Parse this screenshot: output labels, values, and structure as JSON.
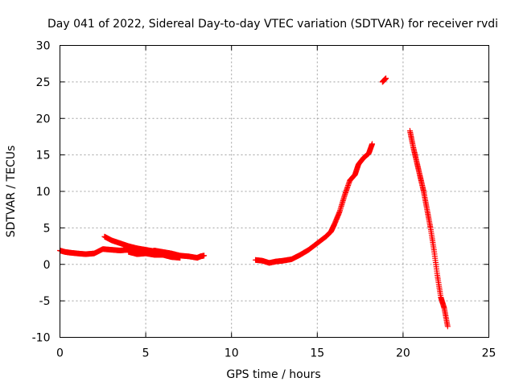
{
  "chart_data": {
    "type": "scatter",
    "title": "Day 041 of 2022, Sidereal Day-to-day VTEC variation (SDTVAR) for receiver rvdi",
    "xlabel": "GPS time / hours",
    "ylabel": "SDTVAR / TECUs",
    "xlim": [
      0,
      25
    ],
    "ylim": [
      -10,
      30
    ],
    "xticks": [
      0,
      5,
      10,
      15,
      20,
      25
    ],
    "yticks": [
      -10,
      -5,
      0,
      5,
      10,
      15,
      20,
      25,
      30
    ],
    "grid": true,
    "marker": "+",
    "series": [
      {
        "name": "SDTVAR",
        "color": "#ff0000",
        "segments": [
          [
            [
              0.0,
              1.9
            ],
            [
              0.3,
              1.7
            ],
            [
              0.6,
              1.6
            ],
            [
              1.0,
              1.5
            ],
            [
              1.5,
              1.4
            ],
            [
              2.0,
              1.5
            ],
            [
              2.5,
              2.1
            ],
            [
              3.0,
              2.0
            ],
            [
              3.5,
              1.9
            ],
            [
              4.0,
              2.0
            ],
            [
              4.5,
              1.9
            ],
            [
              5.0,
              1.6
            ],
            [
              5.5,
              1.9
            ],
            [
              6.0,
              1.7
            ],
            [
              6.5,
              1.5
            ],
            [
              7.0,
              1.2
            ],
            [
              7.5,
              1.1
            ],
            [
              8.0,
              0.9
            ],
            [
              8.2,
              1.1
            ],
            [
              8.4,
              1.2
            ]
          ],
          [
            [
              2.6,
              3.8
            ],
            [
              3.0,
              3.3
            ],
            [
              3.5,
              2.9
            ],
            [
              4.0,
              2.5
            ],
            [
              4.5,
              2.2
            ],
            [
              5.0,
              2.0
            ],
            [
              5.5,
              1.8
            ],
            [
              6.0,
              1.3
            ],
            [
              6.5,
              1.0
            ],
            [
              7.0,
              0.9
            ]
          ],
          [
            [
              4.0,
              1.7
            ],
            [
              4.5,
              1.4
            ],
            [
              5.0,
              1.5
            ],
            [
              5.5,
              1.3
            ],
            [
              6.0,
              1.3
            ],
            [
              6.5,
              1.4
            ]
          ],
          [
            [
              11.4,
              0.6
            ],
            [
              11.8,
              0.5
            ],
            [
              12.2,
              0.2
            ],
            [
              12.6,
              0.4
            ],
            [
              13.0,
              0.5
            ],
            [
              13.5,
              0.7
            ],
            [
              14.0,
              1.3
            ],
            [
              14.5,
              2.0
            ],
            [
              15.0,
              2.9
            ],
            [
              15.5,
              3.8
            ],
            [
              15.8,
              4.5
            ],
            [
              16.0,
              5.5
            ],
            [
              16.3,
              7.2
            ],
            [
              16.6,
              9.5
            ],
            [
              16.9,
              11.5
            ],
            [
              17.2,
              12.3
            ],
            [
              17.4,
              13.7
            ],
            [
              17.7,
              14.6
            ],
            [
              18.0,
              15.2
            ],
            [
              18.2,
              16.5
            ]
          ],
          [
            [
              18.8,
              25.0
            ],
            [
              19.0,
              25.5
            ]
          ],
          [
            [
              20.4,
              18.3
            ],
            [
              20.6,
              16.0
            ],
            [
              20.8,
              14.0
            ],
            [
              21.0,
              12.0
            ],
            [
              21.2,
              10.0
            ],
            [
              21.4,
              7.5
            ],
            [
              21.6,
              5.0
            ],
            [
              21.8,
              2.0
            ],
            [
              22.0,
              -1.5
            ],
            [
              22.2,
              -4.5
            ],
            [
              22.4,
              -6.0
            ],
            [
              22.6,
              -8.5
            ]
          ]
        ]
      }
    ]
  }
}
